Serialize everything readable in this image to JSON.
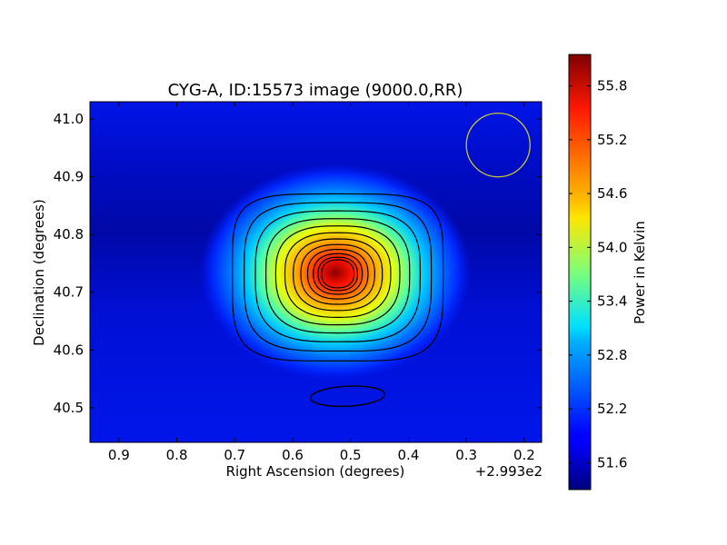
{
  "chart_data": {
    "type": "heatmap",
    "title": "CYG-A, ID:15573 image (9000.0,RR)",
    "xlabel": "Right Ascension (degrees)",
    "ylabel": "Declination (degrees)",
    "x_offset_label": "+2.993e2",
    "x_axis_inverted": true,
    "xlim": [
      0.95,
      0.17
    ],
    "ylim": [
      40.44,
      41.03
    ],
    "x_ticks": [
      0.9,
      0.8,
      0.7,
      0.6,
      0.5,
      0.4,
      0.3,
      0.2
    ],
    "x_tick_labels": [
      "0.9",
      "0.8",
      "0.7",
      "0.6",
      "0.5",
      "0.4",
      "0.3",
      "0.2"
    ],
    "y_ticks": [
      40.5,
      40.6,
      40.7,
      40.8,
      40.9,
      41.0
    ],
    "y_tick_labels": [
      "40.5",
      "40.6",
      "40.7",
      "40.8",
      "40.9",
      "41.0"
    ],
    "colorbar": {
      "label": "Power in Kelvin",
      "colormap": "jet",
      "range": [
        51.3,
        56.15
      ],
      "ticks": [
        51.6,
        52.2,
        52.8,
        53.4,
        54.0,
        54.6,
        55.2,
        55.8
      ],
      "tick_labels": [
        "51.6",
        "52.2",
        "52.8",
        "53.4",
        "54.0",
        "54.6",
        "55.2",
        "55.8"
      ]
    },
    "source": {
      "ra_offset": 0.522,
      "dec": 40.732,
      "peak_kelvin": 56.1,
      "background_kelvin": 51.55
    },
    "beam_circle": {
      "ra_offset": 0.245,
      "dec": 40.955,
      "radius_deg": 0.055,
      "color": "#c8c832"
    },
    "contours": {
      "count": 12,
      "color": "#000000",
      "secondary_blob": {
        "ra_offset": 0.505,
        "dec": 40.52
      }
    },
    "grid": false
  }
}
